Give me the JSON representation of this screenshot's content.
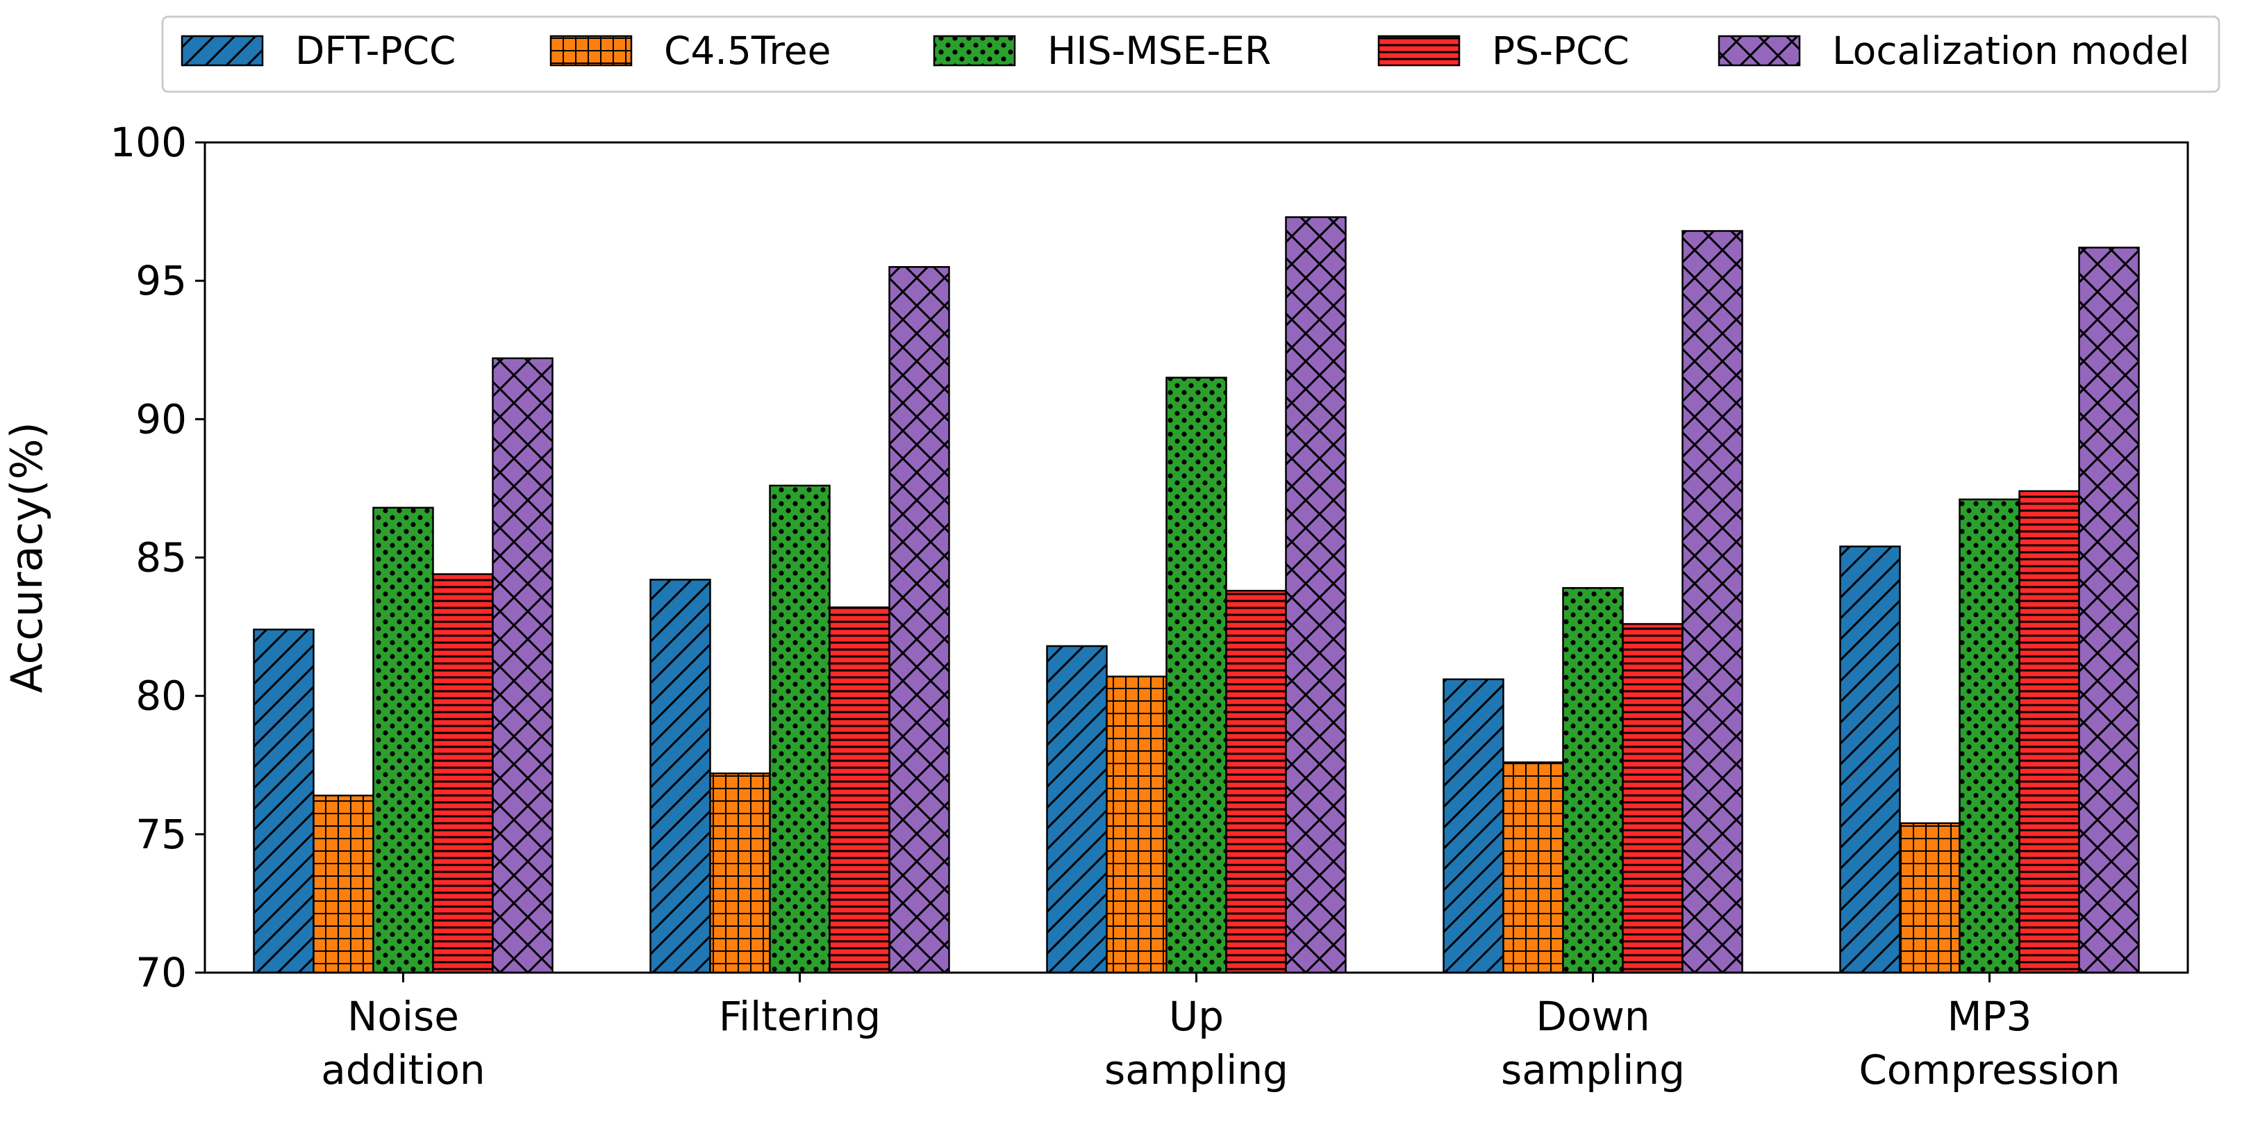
{
  "chart_data": {
    "type": "bar",
    "title": "",
    "xlabel": "",
    "ylabel": "Accuracy(%)",
    "ylim": [
      70,
      100
    ],
    "yticks": [
      70,
      75,
      80,
      85,
      90,
      95,
      100
    ],
    "categories": [
      [
        "Noise",
        "addition"
      ],
      [
        "Filtering"
      ],
      [
        "Up",
        "sampling"
      ],
      [
        "Down",
        "sampling"
      ],
      [
        "MP3",
        "Compression"
      ]
    ],
    "series": [
      {
        "name": "DFT-PCC",
        "color": "#1f77b4",
        "pattern": "diagonal-hatch",
        "values": [
          82.4,
          84.2,
          81.8,
          80.6,
          85.4
        ]
      },
      {
        "name": "C4.5Tree",
        "color": "#ff7f0e",
        "pattern": "grid-hatch",
        "values": [
          76.4,
          77.2,
          80.7,
          77.6,
          75.4
        ]
      },
      {
        "name": "HIS-MSE-ER",
        "color": "#2ca02c",
        "pattern": "dots",
        "values": [
          86.8,
          87.6,
          91.5,
          83.9,
          87.1
        ]
      },
      {
        "name": "PS-PCC",
        "color": "#ff2a2a",
        "pattern": "horizontal-hatch",
        "values": [
          84.4,
          83.2,
          83.8,
          82.6,
          87.4
        ]
      },
      {
        "name": "Localization model",
        "color": "#9467bd",
        "pattern": "cross-hatch",
        "values": [
          92.2,
          95.5,
          97.3,
          96.8,
          96.2
        ]
      }
    ],
    "legend_position": "top"
  }
}
